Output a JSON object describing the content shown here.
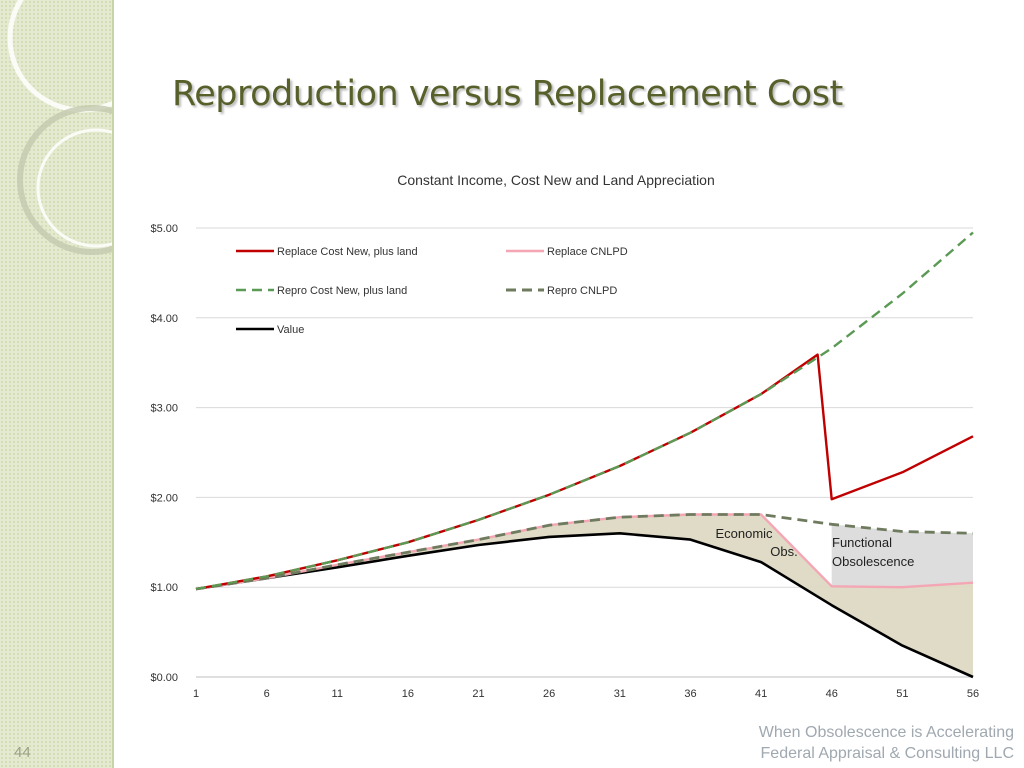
{
  "slide": {
    "title": "Reproduction versus Replacement Cost",
    "number": "44",
    "footer_line1": "When Obsolescence is Accelerating",
    "footer_line2": "Federal Appraisal & Consulting LLC"
  },
  "colors": {
    "replace": "#c00000",
    "replace_cnlpd": "#f4a6b4",
    "repro": "#5b9a55",
    "repro_cnlpd": "#6e7b5e",
    "value": "#000000",
    "economic_fill": "#ddd9c3",
    "functional_fill": "#d9d9d9",
    "title": "#57602a"
  },
  "chart_data": {
    "type": "line",
    "title": "Constant Income, Cost New and Land Appreciation",
    "xlabel": "",
    "ylabel": "",
    "x_ticks": [
      "1",
      "6",
      "11",
      "16",
      "21",
      "26",
      "31",
      "36",
      "41",
      "46",
      "51",
      "56"
    ],
    "x_range": [
      1,
      56
    ],
    "ylim": [
      0,
      5
    ],
    "y_ticks": [
      "$0.00",
      "$1.00",
      "$2.00",
      "$3.00",
      "$4.00",
      "$5.00"
    ],
    "grid": true,
    "legend_position": "top-left",
    "annotations": {
      "economic_line1": "Economic",
      "economic_line2": "Obs.",
      "functional_line1": "Functional",
      "functional_line2": "Obsolescence"
    },
    "series": [
      {
        "name": "Replace Cost New, plus land",
        "key": "replace",
        "style": "solid",
        "points": [
          [
            1,
            0.98
          ],
          [
            6,
            1.12
          ],
          [
            11,
            1.3
          ],
          [
            16,
            1.5
          ],
          [
            21,
            1.75
          ],
          [
            26,
            2.03
          ],
          [
            31,
            2.35
          ],
          [
            36,
            2.72
          ],
          [
            41,
            3.15
          ],
          [
            45,
            3.59
          ],
          [
            46,
            1.98
          ],
          [
            51,
            2.28
          ],
          [
            56,
            2.68
          ]
        ]
      },
      {
        "name": "Replace CNLPD",
        "key": "replace_cnlpd",
        "style": "solid",
        "points": [
          [
            1,
            0.98
          ],
          [
            6,
            1.1
          ],
          [
            11,
            1.25
          ],
          [
            16,
            1.39
          ],
          [
            21,
            1.53
          ],
          [
            26,
            1.69
          ],
          [
            31,
            1.78
          ],
          [
            36,
            1.81
          ],
          [
            41,
            1.81
          ],
          [
            46,
            1.01
          ],
          [
            51,
            1.0
          ],
          [
            56,
            1.05
          ]
        ]
      },
      {
        "name": "Repro Cost New, plus land",
        "key": "repro",
        "style": "dashed",
        "points": [
          [
            1,
            0.98
          ],
          [
            6,
            1.12
          ],
          [
            11,
            1.3
          ],
          [
            16,
            1.5
          ],
          [
            21,
            1.75
          ],
          [
            26,
            2.03
          ],
          [
            31,
            2.35
          ],
          [
            36,
            2.72
          ],
          [
            41,
            3.15
          ],
          [
            46,
            3.66
          ],
          [
            51,
            4.27
          ],
          [
            56,
            4.95
          ]
        ]
      },
      {
        "name": "Repro CNLPD",
        "key": "repro_cnlpd",
        "style": "dashed",
        "points": [
          [
            1,
            0.98
          ],
          [
            6,
            1.1
          ],
          [
            11,
            1.25
          ],
          [
            16,
            1.39
          ],
          [
            21,
            1.53
          ],
          [
            26,
            1.69
          ],
          [
            31,
            1.78
          ],
          [
            36,
            1.81
          ],
          [
            41,
            1.81
          ],
          [
            46,
            1.7
          ],
          [
            51,
            1.62
          ],
          [
            56,
            1.6
          ]
        ]
      },
      {
        "name": "Value",
        "key": "value",
        "style": "solid",
        "points": [
          [
            1,
            0.98
          ],
          [
            6,
            1.1
          ],
          [
            11,
            1.22
          ],
          [
            16,
            1.35
          ],
          [
            21,
            1.47
          ],
          [
            26,
            1.56
          ],
          [
            31,
            1.6
          ],
          [
            36,
            1.53
          ],
          [
            41,
            1.28
          ],
          [
            46,
            0.8
          ],
          [
            51,
            0.35
          ],
          [
            56,
            0.0
          ]
        ]
      }
    ]
  }
}
